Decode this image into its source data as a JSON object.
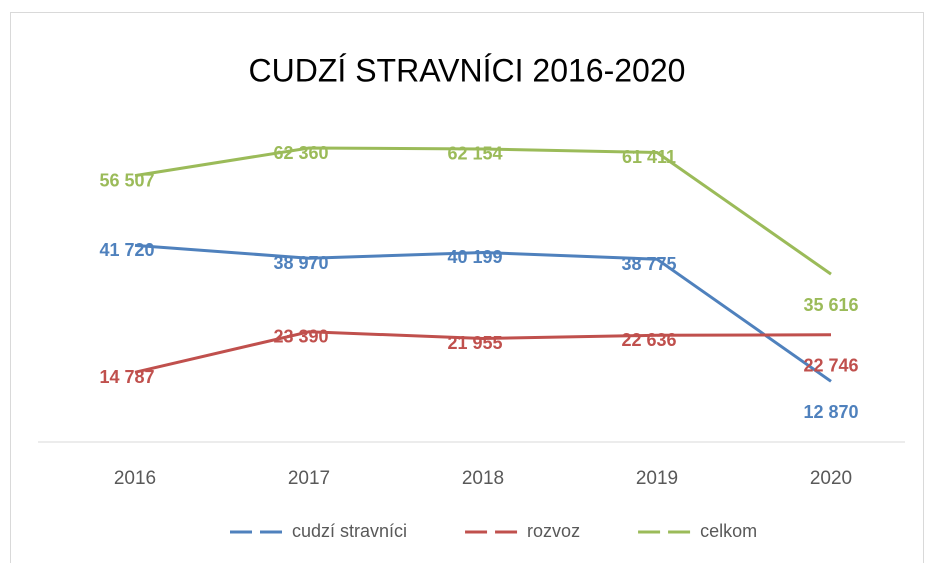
{
  "chart_data": {
    "type": "line",
    "title": "CUDZÍ STRAVNÍCI 2016-2020",
    "categories": [
      "2016",
      "2017",
      "2018",
      "2019",
      "2020"
    ],
    "ylim": [
      0,
      70000
    ],
    "legend": "bottom",
    "series": [
      {
        "name": "cudzí stravníci",
        "color": "#4f81bd",
        "values": [
          41720,
          38970,
          40199,
          38775,
          12870
        ],
        "value_labels": [
          "41 720",
          "38 970",
          "40 199",
          "38 775",
          "12 870"
        ]
      },
      {
        "name": "rozvoz",
        "color": "#c0504d",
        "values": [
          14787,
          23390,
          21955,
          22636,
          22746
        ],
        "value_labels": [
          "14 787",
          "23 390",
          "21 955",
          "22 636",
          "22 746"
        ]
      },
      {
        "name": "celkom",
        "color": "#9bbb59",
        "values": [
          56507,
          62360,
          62154,
          61411,
          35616
        ],
        "value_labels": [
          "56 507",
          "62 360",
          "62 154",
          "61 411",
          "35 616"
        ]
      }
    ]
  }
}
